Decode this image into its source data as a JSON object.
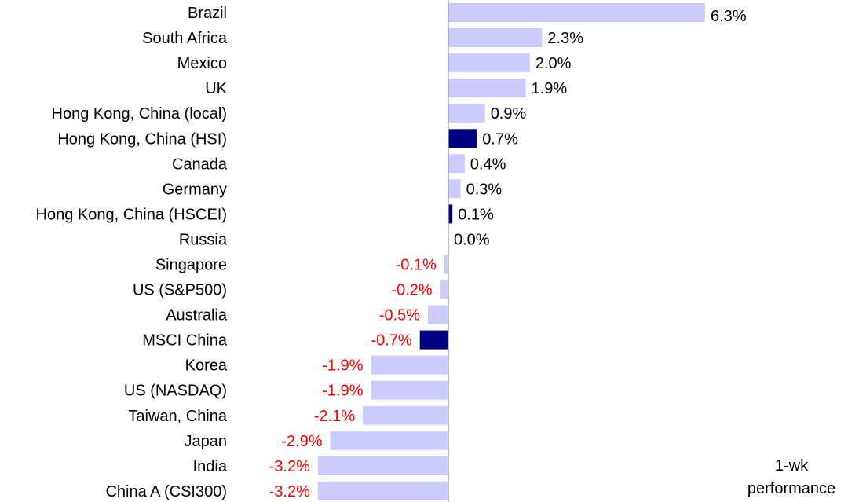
{
  "chart_data": {
    "type": "bar",
    "orientation": "horizontal",
    "categories": [
      "Brazil",
      "South Africa",
      "Mexico",
      "UK",
      "Hong Kong, China (local)",
      "Hong Kong, China (HSI)",
      "Canada",
      "Germany",
      "Hong Kong, China (HSCEI)",
      "Russia",
      "Singapore",
      "US (S&P500)",
      "Australia",
      "MSCI China",
      "Korea",
      "US (NASDAQ)",
      "Taiwan, China",
      "Japan",
      "India",
      "China A (CSI300)"
    ],
    "values": [
      6.3,
      2.3,
      2.0,
      1.9,
      0.9,
      0.7,
      0.4,
      0.3,
      0.1,
      0.0,
      -0.1,
      -0.2,
      -0.5,
      -0.7,
      -1.9,
      -1.9,
      -2.1,
      -2.9,
      -3.2,
      -3.2
    ],
    "value_labels": [
      "6.3%",
      "2.3%",
      "2.0%",
      "1.9%",
      "0.9%",
      "0.7%",
      "0.4%",
      "0.3%",
      "0.1%",
      "0.0%",
      "-0.1%",
      "-0.2%",
      "-0.5%",
      "-0.7%",
      "-1.9%",
      "-1.9%",
      "-2.1%",
      "-2.9%",
      "-3.2%",
      "-3.2%"
    ],
    "highlighted": [
      false,
      false,
      false,
      false,
      false,
      true,
      false,
      false,
      true,
      false,
      false,
      false,
      false,
      true,
      false,
      false,
      false,
      false,
      false,
      false
    ],
    "xlim": [
      -5,
      6.3
    ],
    "annotation": [
      "1-wk",
      "performance"
    ],
    "title": "",
    "xlabel": "",
    "ylabel": "",
    "grid": false,
    "colors": {
      "bar": "#ccccff",
      "bar_highlight": "#000080",
      "axis": "#a6a6a6",
      "positive_label": "#000000",
      "negative_label": "#ff0000"
    }
  }
}
